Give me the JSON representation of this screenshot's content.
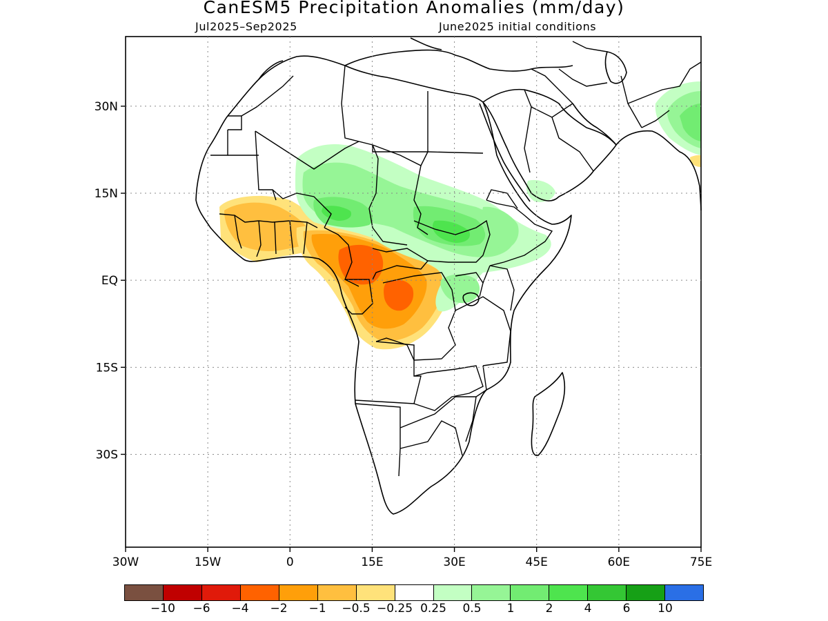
{
  "title": "CanESM5 Precipitation Anomalies (mm/day)",
  "subtitle_left": "Jul2025–Sep2025",
  "subtitle_right": "June2025 initial conditions",
  "chart_data": {
    "type": "heatmap",
    "map_region": "Africa",
    "x_ticks": [
      "30W",
      "15W",
      "0",
      "15E",
      "30E",
      "45E",
      "60E",
      "75E"
    ],
    "y_ticks": [
      "30N",
      "15N",
      "EQ",
      "15S",
      "30S"
    ],
    "grid": true,
    "legend_placement": "bottom",
    "colorbar": {
      "labels": [
        "−10",
        "−6",
        "−4",
        "−2",
        "−1",
        "−0.5",
        "−0.25",
        "0.25",
        "0.5",
        "1",
        "2",
        "4",
        "6",
        "10"
      ],
      "colors": [
        "#7a5040",
        "#c00000",
        "#e01a0a",
        "#ff6200",
        "#ff9f0a",
        "#ffbf3f",
        "#ffe27a",
        "#ffffff",
        "#c3ffc3",
        "#96f596",
        "#72ec72",
        "#4ee44e",
        "#34c734",
        "#16a016",
        "#2a6fe6"
      ]
    },
    "anomaly_regions": [
      {
        "area": "Guinea coast / West Africa",
        "sign": "dry",
        "range": [
          -2,
          -0.25
        ]
      },
      {
        "area": "Nigeria, Cameroon, Congo basin",
        "sign": "dry",
        "range": [
          -4,
          -0.25
        ]
      },
      {
        "area": "Sahel (Niger, Chad)",
        "sign": "wet",
        "range": [
          0.25,
          4
        ]
      },
      {
        "area": "Sudan, South Sudan, Ethiopia",
        "sign": "wet",
        "range": [
          0.25,
          4
        ]
      },
      {
        "area": "Lake Victoria / East Africa",
        "sign": "wet",
        "range": [
          0.25,
          1
        ]
      },
      {
        "area": "South Asia (NW India / Pakistan)",
        "sign": "wet",
        "range": [
          0.25,
          4
        ]
      }
    ]
  }
}
